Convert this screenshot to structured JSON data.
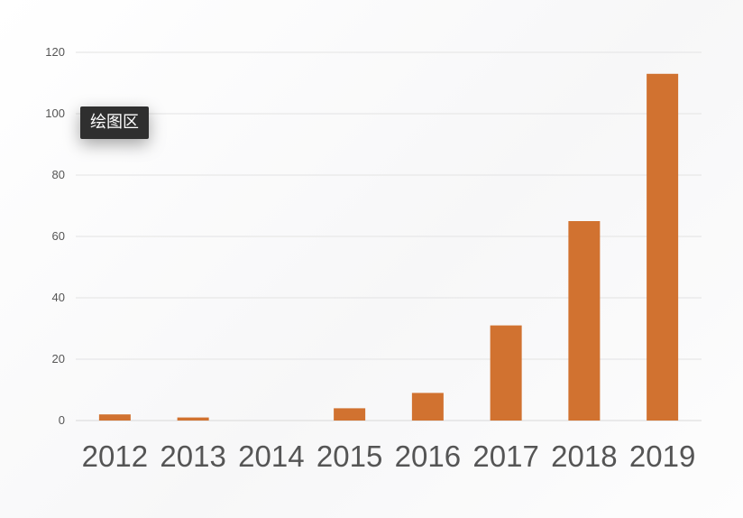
{
  "chart_data": {
    "type": "bar",
    "categories": [
      "2012",
      "2013",
      "2014",
      "2015",
      "2016",
      "2017",
      "2018",
      "2019"
    ],
    "values": [
      2,
      1,
      0,
      4,
      9,
      31,
      65,
      113
    ],
    "ylim": [
      0,
      120
    ],
    "yticks": [
      "0",
      "20",
      "40",
      "60",
      "80",
      "100",
      "120"
    ],
    "grid": true,
    "legend": "none",
    "bar_color": "#d17230",
    "grid_color": "#e3e3e3",
    "axis_color": "#d8d8d8",
    "tick_label_color": "#555555"
  },
  "tooltip": {
    "label": "绘图区"
  }
}
